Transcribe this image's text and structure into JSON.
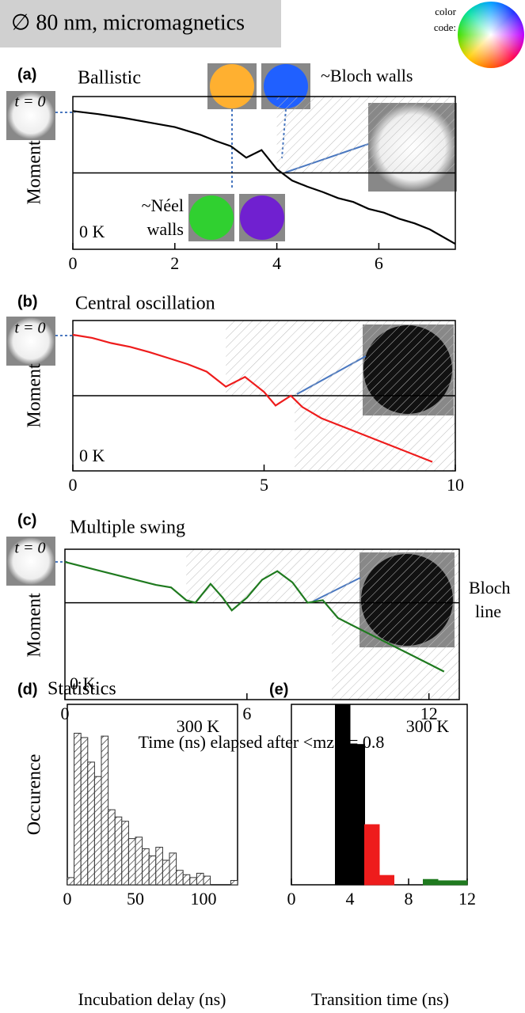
{
  "header": {
    "title": "∅ 80 nm, micromagnetics",
    "color_code": [
      "color",
      "code:"
    ]
  },
  "chart_data": [
    {
      "type": "line",
      "panel": "(a)",
      "label": "Ballistic",
      "ylabel": "Moment",
      "temperature": "0 K",
      "t0": "t = 0",
      "annotations": [
        "~Bloch walls",
        "~Néel",
        "walls"
      ],
      "color": "#000000",
      "x": [
        0,
        0.5,
        1,
        1.5,
        2,
        2.5,
        2.8,
        3.1,
        3.4,
        3.7,
        4,
        4.3,
        4.6,
        4.9,
        5.2,
        5.5,
        5.8,
        6.1,
        6.4,
        6.7,
        7,
        7.5
      ],
      "values": [
        0.81,
        0.77,
        0.72,
        0.66,
        0.6,
        0.5,
        0.42,
        0.35,
        0.2,
        0.3,
        0.05,
        -0.1,
        -0.18,
        -0.25,
        -0.33,
        -0.38,
        -0.47,
        -0.52,
        -0.6,
        -0.66,
        -0.74,
        -0.93
      ],
      "xlim": [
        0,
        7.5
      ],
      "ylim": [
        -1,
        1
      ],
      "xticks": [
        0,
        2,
        4,
        6
      ],
      "hline": 0,
      "shaded": [
        [
          4,
          7.5,
          0,
          1
        ]
      ]
    },
    {
      "type": "line",
      "panel": "(b)",
      "label": "Central oscillation",
      "ylabel": "Moment",
      "temperature": "0 K",
      "t0": "t = 0",
      "color": "#ee1c1c",
      "x": [
        0,
        0.5,
        1,
        1.5,
        2,
        2.5,
        3,
        3.5,
        4,
        4.5,
        5,
        5.3,
        5.7,
        6,
        6.5,
        7,
        7.5,
        8,
        8.5,
        9,
        9.4
      ],
      "values": [
        0.81,
        0.77,
        0.7,
        0.65,
        0.58,
        0.5,
        0.42,
        0.32,
        0.12,
        0.25,
        0.05,
        -0.13,
        0,
        -0.15,
        -0.3,
        -0.4,
        -0.5,
        -0.6,
        -0.7,
        -0.8,
        -0.88
      ],
      "xlim": [
        0,
        10
      ],
      "ylim": [
        -1,
        1
      ],
      "xticks": [
        0,
        5,
        10
      ],
      "hline": 0,
      "shaded": [
        [
          4,
          10,
          0,
          1
        ],
        [
          5.8,
          10,
          -1,
          0
        ]
      ]
    },
    {
      "type": "line",
      "panel": "(c)",
      "label": "Multiple swing",
      "ylabel": "Moment",
      "temperature": "0 K",
      "t0": "t = 0",
      "annotations": [
        "Bloch",
        "line"
      ],
      "xlabel": "Time (ns) elapsed after <mz> = 0.8",
      "color": "#1f7a1f",
      "x": [
        0,
        1,
        2,
        3,
        3.5,
        4,
        4.3,
        4.8,
        5.2,
        5.5,
        6,
        6.5,
        7,
        7.5,
        8,
        8.5,
        9,
        9.5,
        10,
        11,
        12,
        12.5
      ],
      "values": [
        0.8,
        0.65,
        0.5,
        0.35,
        0.3,
        0.05,
        0.0,
        0.37,
        0.1,
        -0.15,
        0.1,
        0.45,
        0.62,
        0.4,
        0.0,
        0.05,
        -0.3,
        -0.45,
        -0.6,
        -0.9,
        -1.2,
        -1.35
      ],
      "xlim": [
        0,
        13
      ],
      "ylim": [
        -1.9,
        1.05
      ],
      "xticks": [
        0,
        6,
        12
      ],
      "hline": 0,
      "shaded": [
        [
          4,
          13,
          0,
          1.05
        ],
        [
          8.8,
          13,
          -1.9,
          0
        ]
      ]
    },
    {
      "type": "histogram",
      "panel": "(d)",
      "label": "Statistics",
      "temperature": "300 K",
      "ylabel": "Occurence",
      "xlabel": "Incubation delay (ns)",
      "bins": [
        0,
        5,
        10,
        15,
        20,
        25,
        30,
        35,
        40,
        45,
        50,
        55,
        60,
        65,
        70,
        75,
        80,
        85,
        90,
        95,
        100,
        105,
        110,
        115,
        120,
        125
      ],
      "values": [
        0.5,
        10.5,
        10.2,
        8.5,
        7.5,
        10.3,
        5.2,
        4.7,
        4.4,
        3.2,
        3.3,
        2.5,
        2.0,
        2.6,
        1.7,
        2.2,
        1.0,
        0.7,
        0.5,
        0.8,
        0.6,
        0,
        0,
        0,
        0.3
      ],
      "xlim": [
        0,
        125
      ],
      "ylim": [
        0,
        12.5
      ],
      "xticks": [
        0,
        50,
        100
      ],
      "hatched": true
    },
    {
      "type": "histogram",
      "panel": "(e)",
      "temperature": "300 K",
      "xlabel": "Transition time (ns)",
      "bins": [
        3,
        4,
        5,
        6,
        7,
        8,
        9,
        10,
        11,
        12
      ],
      "values": [
        13.5,
        10.5,
        4.5,
        0.7,
        0,
        0,
        0.4,
        0.3,
        0.3
      ],
      "colors": [
        "#000000",
        "#000000",
        "#ee1c1c",
        "#ee1c1c",
        "#ee1c1c",
        "#1f7a1f",
        "#1f7a1f",
        "#1f7a1f",
        "#1f7a1f"
      ],
      "xlim": [
        0,
        12
      ],
      "ylim": [
        0,
        13.5
      ],
      "xticks": [
        0,
        4,
        8,
        12
      ],
      "hatched": false
    }
  ]
}
